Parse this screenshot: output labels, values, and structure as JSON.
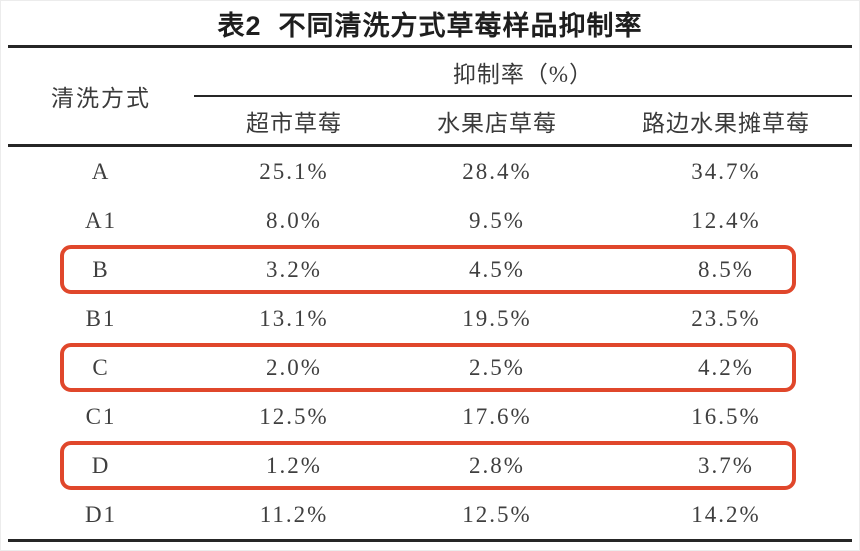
{
  "title": "表2  不同清洗方式草莓样品抑制率",
  "table": {
    "col1_header": "清洗方式",
    "group_header": "抑制率（%）",
    "sub_headers": [
      "超市草莓",
      "水果店草莓",
      "路边水果摊草莓"
    ],
    "rows": [
      {
        "method": "A",
        "values": [
          "25.1%",
          "28.4%",
          "34.7%"
        ],
        "highlighted": false
      },
      {
        "method": "A1",
        "values": [
          "8.0%",
          "9.5%",
          "12.4%"
        ],
        "highlighted": false
      },
      {
        "method": "B",
        "values": [
          "3.2%",
          "4.5%",
          "8.5%"
        ],
        "highlighted": true
      },
      {
        "method": "B1",
        "values": [
          "13.1%",
          "19.5%",
          "23.5%"
        ],
        "highlighted": false
      },
      {
        "method": "C",
        "values": [
          "2.0%",
          "2.5%",
          "4.2%"
        ],
        "highlighted": true
      },
      {
        "method": "C1",
        "values": [
          "12.5%",
          "17.6%",
          "16.5%"
        ],
        "highlighted": false
      },
      {
        "method": "D",
        "values": [
          "1.2%",
          "2.8%",
          "3.7%"
        ],
        "highlighted": true
      },
      {
        "method": "D1",
        "values": [
          "11.2%",
          "12.5%",
          "14.2%"
        ],
        "highlighted": false
      }
    ],
    "colors": {
      "highlight": "#e0472b",
      "rule": "#262626"
    }
  },
  "chart_data": {
    "type": "table",
    "title": "表2  不同清洗方式草莓样品抑制率",
    "columns": [
      "清洗方式",
      "超市草莓",
      "水果店草莓",
      "路边水果摊草莓"
    ],
    "unit": "抑制率（%）",
    "rows": [
      [
        "A",
        25.1,
        28.4,
        34.7
      ],
      [
        "A1",
        8.0,
        9.5,
        12.4
      ],
      [
        "B",
        3.2,
        4.5,
        8.5
      ],
      [
        "B1",
        13.1,
        19.5,
        23.5
      ],
      [
        "C",
        2.0,
        2.5,
        4.2
      ],
      [
        "C1",
        12.5,
        17.6,
        16.5
      ],
      [
        "D",
        1.2,
        2.8,
        3.7
      ],
      [
        "D1",
        11.2,
        12.5,
        14.2
      ]
    ],
    "highlighted_rows": [
      "B",
      "C",
      "D"
    ]
  }
}
